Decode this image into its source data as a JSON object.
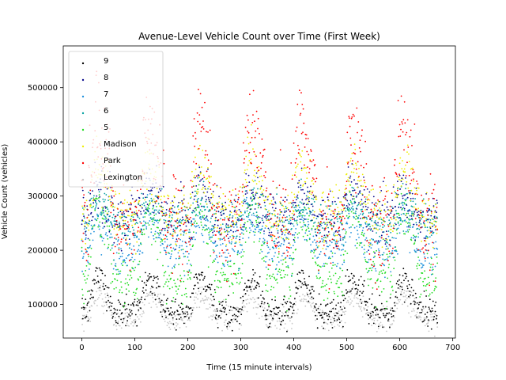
{
  "chart_data": {
    "type": "scatter",
    "title": "Avenue-Level Vehicle Count over Time (First Week)",
    "xlabel": "Time (15 minute intervals)",
    "ylabel": "Vehicle Count (vehicles)",
    "xlim": [
      -35,
      705
    ],
    "ylim": [
      38000,
      577000
    ],
    "xticks": [
      0,
      100,
      200,
      300,
      400,
      500,
      600,
      700
    ],
    "yticks": [
      100000,
      200000,
      300000,
      400000,
      500000
    ],
    "ytick_labels": [
      "100000",
      "200000",
      "300000",
      "400000",
      "500000"
    ],
    "grid": false,
    "legend_position": "top-left",
    "n_points": 672,
    "series": [
      {
        "name": "9",
        "color": "#000000",
        "night": 85000,
        "day": 150000,
        "noise": 14000
      },
      {
        "name": "8",
        "color": "#0a0a8c",
        "night": 260000,
        "day": 310000,
        "noise": 25000
      },
      {
        "name": "7",
        "color": "#1e90dc",
        "night": 200000,
        "day": 260000,
        "noise": 20000
      },
      {
        "name": "6",
        "color": "#00a0a0",
        "night": 250000,
        "day": 290000,
        "noise": 20000
      },
      {
        "name": "5",
        "color": "#22dd22",
        "night": 150000,
        "day": 280000,
        "noise": 22000
      },
      {
        "name": "Madison",
        "color": "#eeee00",
        "night": 260000,
        "day": 360000,
        "noise": 28000
      },
      {
        "name": "Park",
        "color": "#ff0000",
        "night": 250000,
        "day": 440000,
        "noise": 45000
      },
      {
        "name": "Lexington",
        "color": "#c8c8c8",
        "night": 75000,
        "day": 120000,
        "noise": 12000
      }
    ]
  }
}
